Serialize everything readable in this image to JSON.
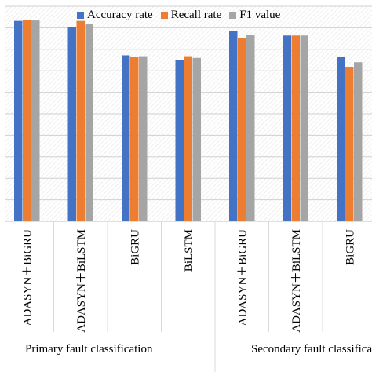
{
  "chart_data": {
    "type": "bar",
    "categories": [
      "ADASYN＋BiGRU",
      "ADASYN＋BiLSTM",
      "BiGRU",
      "BiLSTM",
      "ADASYN＋BiGRU",
      "ADASYN＋BiLSTM",
      "BiGRU"
    ],
    "groups": [
      {
        "label": "Primary fault classification",
        "count": 4
      },
      {
        "label": "Secondary fault classificati",
        "count": 3
      }
    ],
    "series": [
      {
        "name": "Accuracy rate",
        "color": "#4472C4",
        "values": [
          0.966,
          0.952,
          0.886,
          0.875,
          0.942,
          0.932,
          0.882
        ]
      },
      {
        "name": "Recall rate",
        "color": "#ED7D31",
        "values": [
          0.968,
          0.966,
          0.882,
          0.884,
          0.926,
          0.932,
          0.858
        ]
      },
      {
        "name": "F1 value",
        "color": "#A5A5A5",
        "values": [
          0.967,
          0.958,
          0.884,
          0.88,
          0.934,
          0.932,
          0.87
        ]
      }
    ],
    "ylim": [
      0.5,
      1.0
    ],
    "grid": true,
    "legend_position": "top"
  }
}
